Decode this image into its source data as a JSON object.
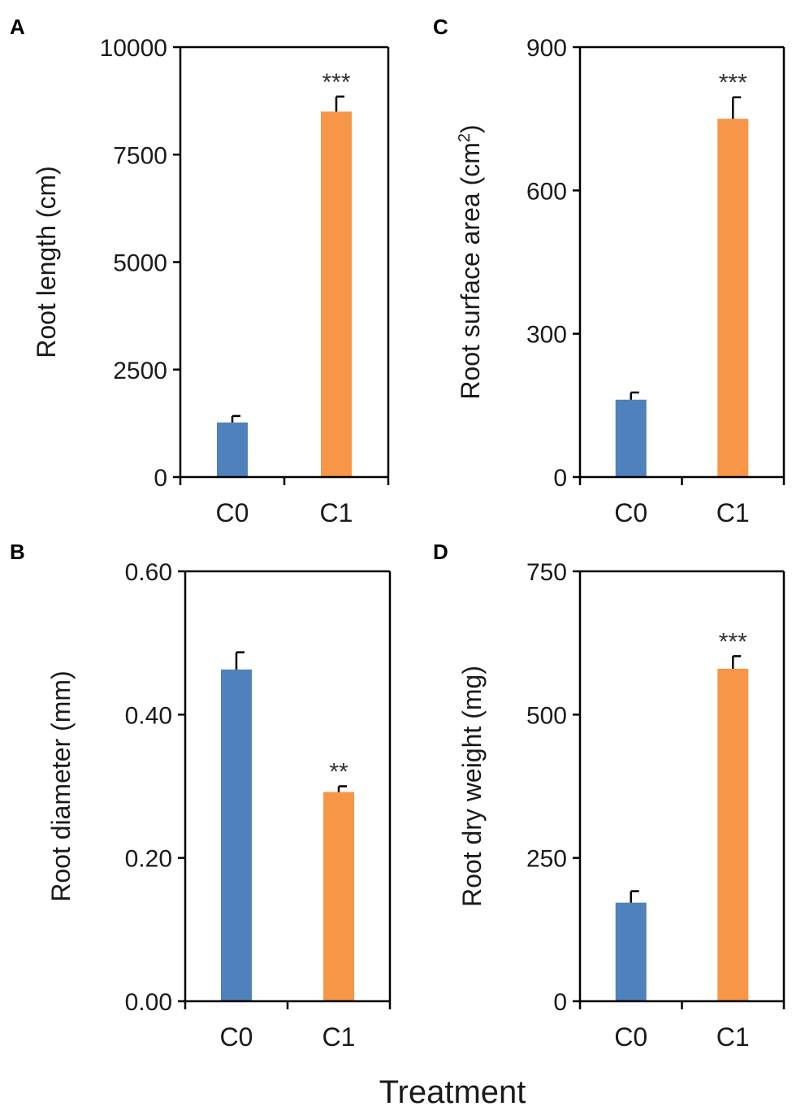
{
  "figure": {
    "common_xlabel": "Treatment"
  },
  "colors": {
    "C0": "#4f81bd",
    "C1": "#f79646",
    "axis": "#000000"
  },
  "chart_data": [
    {
      "panel": "A",
      "type": "bar",
      "categories": [
        "C0",
        "C1"
      ],
      "values": [
        1270,
        8500
      ],
      "errors": [
        150,
        350
      ],
      "significance": [
        "",
        "***"
      ],
      "ylabel": "Root length (cm)",
      "ylabel_sup": "",
      "ylabel_tail": "",
      "ylim": [
        0,
        10000
      ],
      "yticks": [
        0,
        2500,
        5000,
        7500,
        10000
      ],
      "ytick_labels": [
        "0",
        "2500",
        "5000",
        "7500",
        "10000"
      ]
    },
    {
      "panel": "C",
      "type": "bar",
      "categories": [
        "C0",
        "C1"
      ],
      "values": [
        162,
        750
      ],
      "errors": [
        15,
        45
      ],
      "significance": [
        "",
        "***"
      ],
      "ylabel": "Root surface area (cm",
      "ylabel_sup": "2",
      "ylabel_tail": ")",
      "ylim": [
        0,
        900
      ],
      "yticks": [
        0,
        300,
        600,
        900
      ],
      "ytick_labels": [
        "0",
        "300",
        "600",
        "900"
      ]
    },
    {
      "panel": "B",
      "type": "bar",
      "categories": [
        "C0",
        "C1"
      ],
      "values": [
        0.463,
        0.292
      ],
      "errors": [
        0.024,
        0.008
      ],
      "significance": [
        "",
        "**"
      ],
      "ylabel": "Root diameter (mm)",
      "ylabel_sup": "",
      "ylabel_tail": "",
      "ylim": [
        0,
        0.6
      ],
      "yticks": [
        0,
        0.2,
        0.4,
        0.6
      ],
      "ytick_labels": [
        "0.00",
        "0.20",
        "0.40",
        "0.60"
      ]
    },
    {
      "panel": "D",
      "type": "bar",
      "categories": [
        "C0",
        "C1"
      ],
      "values": [
        172,
        580
      ],
      "errors": [
        20,
        22
      ],
      "significance": [
        "",
        "***"
      ],
      "ylabel": "Root dry weight (mg)",
      "ylabel_sup": "",
      "ylabel_tail": "",
      "ylim": [
        0,
        750
      ],
      "yticks": [
        0,
        250,
        500,
        750
      ],
      "ytick_labels": [
        "0",
        "250",
        "500",
        "750"
      ]
    }
  ]
}
